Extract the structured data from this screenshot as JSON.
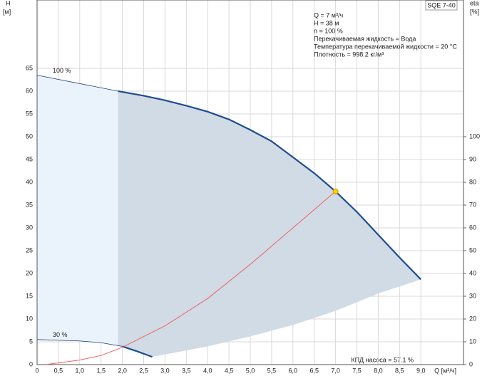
{
  "chart_data": {
    "type": "line",
    "title": "SQE 7-40",
    "y_label": "H",
    "y_unit": "[м]",
    "y2_label": "eta",
    "y2_unit": "[%]",
    "x_label": "Q [м³/ч]",
    "annotations": [
      "Q = 7 м³/ч",
      "H = 38 м",
      "n = 100 %",
      "Перекачиваемая жидкость = Вода",
      "Температура перекачиваемой жидкости = 20 °C",
      "Плотность = 998.2 кг/м³"
    ],
    "efficiency_note": "КПД насоса = 57.1 %",
    "xlim": [
      0,
      10
    ],
    "ylim": [
      0,
      80
    ],
    "y2lim": [
      0,
      160
    ],
    "grid": true,
    "xticks": [
      0,
      {
        "value": 0.5,
        "label": "0,5"
      },
      {
        "value": 1,
        "label": "1,0"
      },
      {
        "value": 1.5,
        "label": "1,5"
      },
      {
        "value": 2,
        "label": "2,0"
      },
      {
        "value": 2.5,
        "label": "2,5"
      },
      {
        "value": 3,
        "label": "3,0"
      },
      {
        "value": 3.5,
        "label": "3,5"
      },
      {
        "value": 4,
        "label": "4,0"
      },
      {
        "value": 4.5,
        "label": "4,5"
      },
      {
        "value": 5,
        "label": "5,0"
      },
      {
        "value": 5.5,
        "label": "5,5"
      },
      {
        "value": 6,
        "label": "6,0"
      },
      {
        "value": 6.5,
        "label": "6,5"
      },
      {
        "value": 7,
        "label": "7,0"
      },
      {
        "value": 7.5,
        "label": "7,5"
      },
      {
        "value": 8,
        "label": "8,0"
      },
      {
        "value": 8.5,
        "label": "8,5"
      },
      {
        "value": 9,
        "label": "9,0"
      }
    ],
    "yticks": [
      0,
      5,
      10,
      15,
      20,
      25,
      30,
      35,
      40,
      45,
      50,
      55,
      60,
      65
    ],
    "y2ticks": [
      0,
      10,
      20,
      30,
      40,
      50,
      60,
      70,
      80,
      90,
      100
    ],
    "areas": [
      {
        "color": "#eaf3fc",
        "x": [
          0,
          1.9,
          1.9,
          1.5,
          1,
          0
        ],
        "values": [
          63.5,
          60,
          4.1,
          4.8,
          5.2,
          5.5
        ]
      },
      {
        "color": "#d0dbe6",
        "x": [
          1.9,
          2.5,
          3,
          3.5,
          4,
          4.5,
          5,
          5.5,
          6,
          6.5,
          7,
          7.5,
          8,
          8.5,
          9,
          8,
          7,
          6,
          5,
          4,
          2.7,
          1.9
        ],
        "values": [
          60,
          59,
          58,
          56.8,
          55.5,
          53.8,
          51.5,
          49,
          45.5,
          42,
          38,
          33.5,
          28.5,
          23.5,
          18.7,
          15.6,
          11.8,
          8.7,
          6.2,
          4.0,
          1.7,
          4.1
        ]
      }
    ],
    "series": [
      {
        "name": "100 %",
        "color": "#1f3f7a",
        "linewidth": 0.8,
        "x": [
          0,
          1.9
        ],
        "values": [
          63.5,
          60
        ]
      },
      {
        "color": "#1f4e8c",
        "linewidth": 2.2,
        "x": [
          1.9,
          2.5,
          3,
          3.5,
          4,
          4.5,
          5,
          5.5,
          6,
          6.5,
          7,
          7.5,
          8,
          8.5,
          9
        ],
        "values": [
          60,
          59,
          58,
          56.8,
          55.5,
          53.8,
          51.5,
          49,
          45.5,
          42,
          38,
          33.5,
          28.5,
          23.5,
          18.7
        ]
      },
      {
        "name": "30 %",
        "color": "#1f3f7a",
        "linewidth": 0.8,
        "x": [
          0,
          1,
          1.5,
          2
        ],
        "values": [
          5.5,
          5.2,
          4.8,
          4.0
        ]
      },
      {
        "color": "#1f4e8c",
        "linewidth": 2.2,
        "x": [
          2,
          2.35,
          2.7
        ],
        "values": [
          4.0,
          2.9,
          1.7
        ]
      },
      {
        "color": "#f06060",
        "linewidth": 1,
        "x": [
          0.2,
          1,
          1.5,
          2,
          3,
          4,
          5,
          6,
          7
        ],
        "values": [
          0,
          1,
          2,
          3.8,
          8.5,
          14.5,
          22,
          30,
          38
        ]
      }
    ],
    "points": [
      {
        "x": 7,
        "y": 38,
        "color": "#ffd200"
      }
    ]
  }
}
